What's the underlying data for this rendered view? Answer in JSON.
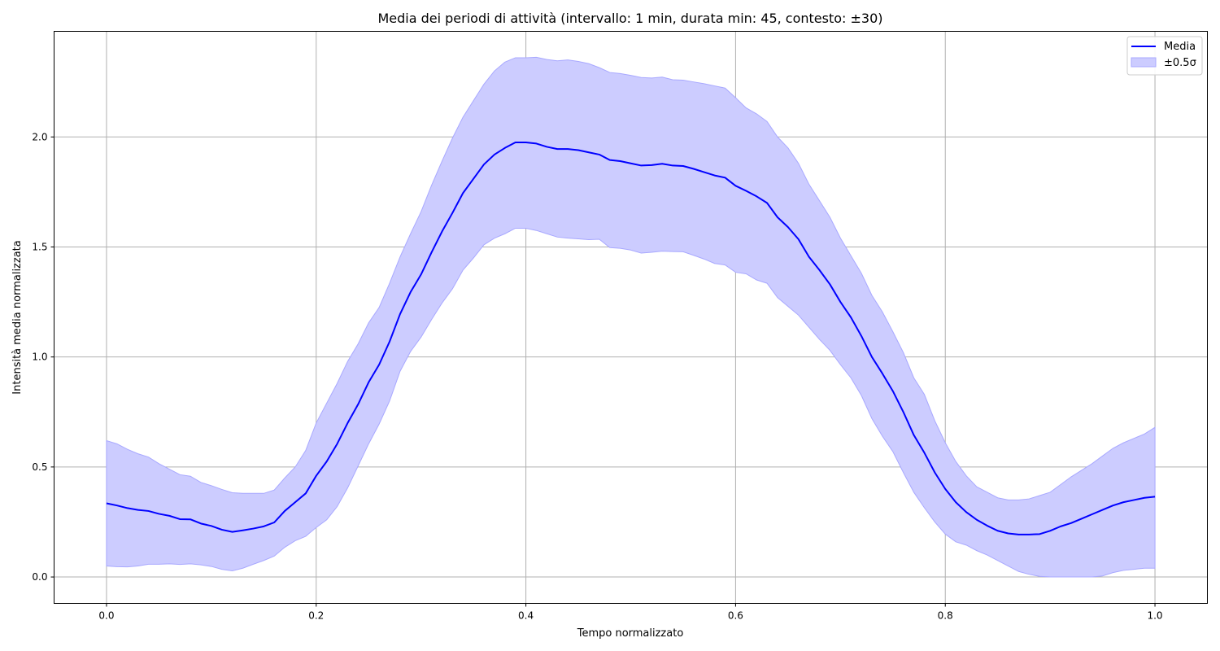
{
  "chart_data": {
    "type": "line",
    "title": "Media dei periodi di attività (intervallo: 1 min, durata min: 45, contesto: ±30)",
    "xlabel": "Tempo normalizzato",
    "ylabel": "Intensità media normalizzata",
    "xlim": [
      -0.05,
      1.05
    ],
    "ylim": [
      -0.12,
      2.48
    ],
    "xticks": [
      0.0,
      0.2,
      0.4,
      0.6,
      0.8,
      1.0
    ],
    "xtick_labels": [
      "0.0",
      "0.2",
      "0.4",
      "0.6",
      "0.8",
      "1.0"
    ],
    "yticks": [
      0.0,
      0.5,
      1.0,
      1.5,
      2.0
    ],
    "ytick_labels": [
      "0.0",
      "0.5",
      "1.0",
      "1.5",
      "2.0"
    ],
    "grid": true,
    "legend_position": "top-right",
    "colors": {
      "line": "#0000ff",
      "band": "#ccccff",
      "band_edge": "#a8a8ff",
      "grid": "#b0b0b0"
    },
    "series": [
      {
        "name": "Media",
        "kind": "line",
        "x": [
          0.0,
          0.01,
          0.02,
          0.03,
          0.04,
          0.05,
          0.06,
          0.07,
          0.08,
          0.09,
          0.1,
          0.11,
          0.12,
          0.13,
          0.14,
          0.15,
          0.16,
          0.17,
          0.18,
          0.19,
          0.2,
          0.21,
          0.22,
          0.23,
          0.24,
          0.25,
          0.26,
          0.27,
          0.28,
          0.29,
          0.3,
          0.31,
          0.32,
          0.33,
          0.34,
          0.35,
          0.36,
          0.37,
          0.38,
          0.39,
          0.4,
          0.41,
          0.42,
          0.43,
          0.44,
          0.45,
          0.46,
          0.47,
          0.48,
          0.49,
          0.5,
          0.51,
          0.52,
          0.53,
          0.54,
          0.55,
          0.56,
          0.57,
          0.58,
          0.59,
          0.6,
          0.61,
          0.62,
          0.63,
          0.64,
          0.65,
          0.66,
          0.67,
          0.68,
          0.69,
          0.7,
          0.71,
          0.72,
          0.73,
          0.74,
          0.75,
          0.76,
          0.77,
          0.78,
          0.79,
          0.8,
          0.81,
          0.82,
          0.83,
          0.84,
          0.85,
          0.86,
          0.87,
          0.88,
          0.89,
          0.9,
          0.91,
          0.92,
          0.93,
          0.94,
          0.95,
          0.96,
          0.97,
          0.98,
          0.99,
          1.0
        ],
        "y": [
          0.335,
          0.325,
          0.313,
          0.305,
          0.3,
          0.287,
          0.278,
          0.263,
          0.262,
          0.243,
          0.232,
          0.215,
          0.205,
          0.212,
          0.22,
          0.23,
          0.248,
          0.3,
          0.34,
          0.38,
          0.46,
          0.525,
          0.605,
          0.7,
          0.785,
          0.885,
          0.965,
          1.07,
          1.195,
          1.295,
          1.375,
          1.475,
          1.57,
          1.655,
          1.745,
          1.81,
          1.875,
          1.92,
          1.95,
          1.975,
          1.975,
          1.97,
          1.955,
          1.945,
          1.945,
          1.94,
          1.93,
          1.92,
          1.895,
          1.89,
          1.88,
          1.87,
          1.872,
          1.878,
          1.87,
          1.868,
          1.855,
          1.84,
          1.825,
          1.815,
          1.778,
          1.755,
          1.73,
          1.7,
          1.635,
          1.59,
          1.535,
          1.455,
          1.395,
          1.33,
          1.25,
          1.18,
          1.095,
          1.0,
          0.925,
          0.845,
          0.75,
          0.645,
          0.565,
          0.475,
          0.4,
          0.34,
          0.295,
          0.26,
          0.233,
          0.21,
          0.198,
          0.193,
          0.193,
          0.195,
          0.21,
          0.23,
          0.245,
          0.265,
          0.285,
          0.305,
          0.325,
          0.34,
          0.35,
          0.36,
          0.365
        ]
      },
      {
        "name": "±0.5σ",
        "kind": "band",
        "upper": [
          0.62,
          0.605,
          0.58,
          0.56,
          0.545,
          0.515,
          0.49,
          0.465,
          0.458,
          0.43,
          0.415,
          0.398,
          0.383,
          0.38,
          0.38,
          0.38,
          0.395,
          0.45,
          0.5,
          0.575,
          0.7,
          0.79,
          0.88,
          0.98,
          1.06,
          1.155,
          1.225,
          1.335,
          1.455,
          1.56,
          1.66,
          1.78,
          1.89,
          1.995,
          2.09,
          2.165,
          2.24,
          2.3,
          2.34,
          2.36,
          2.36,
          2.362,
          2.352,
          2.346,
          2.35,
          2.343,
          2.333,
          2.315,
          2.293,
          2.288,
          2.28,
          2.27,
          2.268,
          2.272,
          2.26,
          2.258,
          2.25,
          2.242,
          2.232,
          2.222,
          2.178,
          2.132,
          2.105,
          2.07,
          2.0,
          1.95,
          1.88,
          1.785,
          1.71,
          1.635,
          1.54,
          1.46,
          1.38,
          1.28,
          1.205,
          1.115,
          1.02,
          0.905,
          0.83,
          0.71,
          0.61,
          0.525,
          0.46,
          0.41,
          0.385,
          0.36,
          0.35,
          0.35,
          0.355,
          0.37,
          0.385,
          0.42,
          0.455,
          0.485,
          0.515,
          0.55,
          0.585,
          0.61,
          0.63,
          0.65,
          0.68
        ],
        "lower": [
          0.05,
          0.047,
          0.046,
          0.05,
          0.058,
          0.058,
          0.06,
          0.057,
          0.06,
          0.055,
          0.048,
          0.035,
          0.028,
          0.04,
          0.058,
          0.075,
          0.095,
          0.135,
          0.165,
          0.185,
          0.225,
          0.26,
          0.32,
          0.405,
          0.505,
          0.605,
          0.695,
          0.8,
          0.935,
          1.025,
          1.09,
          1.17,
          1.245,
          1.31,
          1.395,
          1.45,
          1.51,
          1.54,
          1.56,
          1.585,
          1.585,
          1.575,
          1.56,
          1.545,
          1.54,
          1.537,
          1.533,
          1.535,
          1.497,
          1.494,
          1.486,
          1.472,
          1.476,
          1.481,
          1.479,
          1.478,
          1.462,
          1.445,
          1.425,
          1.418,
          1.385,
          1.378,
          1.35,
          1.335,
          1.27,
          1.23,
          1.19,
          1.135,
          1.08,
          1.03,
          0.965,
          0.905,
          0.825,
          0.72,
          0.64,
          0.57,
          0.475,
          0.385,
          0.315,
          0.25,
          0.195,
          0.16,
          0.145,
          0.12,
          0.1,
          0.075,
          0.05,
          0.025,
          0.012,
          0.003,
          0.0,
          0.0,
          0.0,
          0.0,
          0.0,
          0.005,
          0.02,
          0.03,
          0.035,
          0.04,
          0.04
        ]
      }
    ]
  }
}
